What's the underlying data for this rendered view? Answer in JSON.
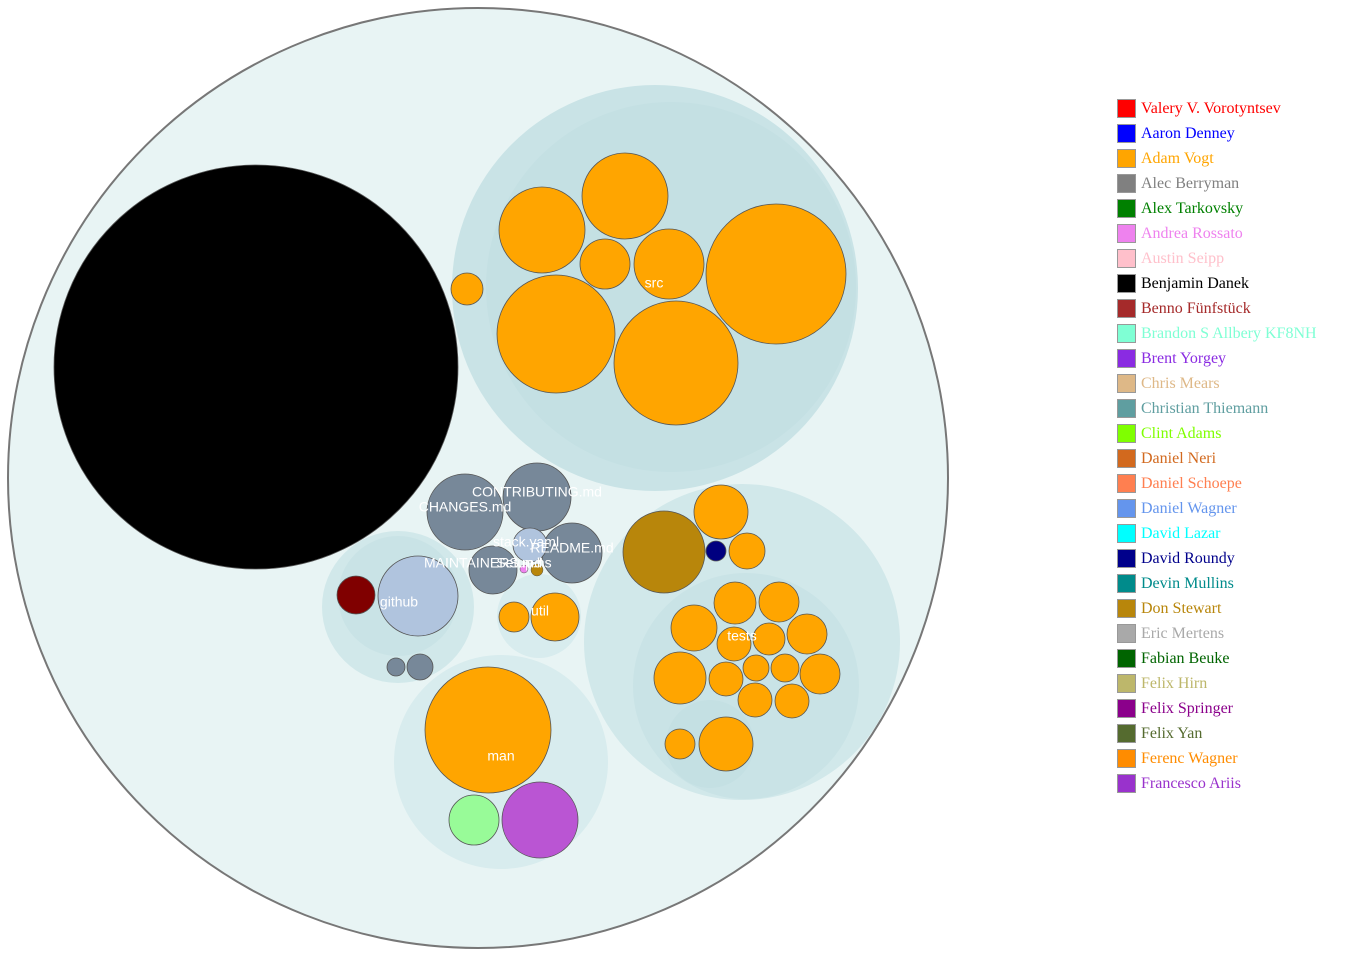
{
  "chart_data": {
    "type": "circle-packing",
    "root": {
      "name": "",
      "fill": "#e8f4f4"
    },
    "folders": [
      {
        "id": "src",
        "name": "src",
        "fill": "#c9e3e6"
      },
      {
        "id": "src-inner",
        "name": "",
        "fill": "#c4e0e3"
      },
      {
        "id": "github",
        "name": "github",
        "fill": "#d1e8ea"
      },
      {
        "id": "github-inner",
        "name": "",
        "fill": "#c9e3e6"
      },
      {
        "id": "util",
        "name": "util",
        "fill": "#d8ecee"
      },
      {
        "id": "man",
        "name": "man",
        "fill": "#d8ecee"
      },
      {
        "id": "tests",
        "name": "tests",
        "fill": "#d1e8ea"
      },
      {
        "id": "tests-inner",
        "name": "",
        "fill": "#c9e3e6"
      },
      {
        "id": "tests-sub",
        "name": "",
        "fill": "#c4e0e3"
      }
    ],
    "files": [
      {
        "name": "",
        "author": "Benjamin Danek"
      },
      {
        "name": "CHANGES.md",
        "author": "Alec Berryman"
      },
      {
        "name": "CONTRIBUTING.md",
        "author": "Alec Berryman"
      },
      {
        "name": "README.md",
        "author": "Alec Berryman"
      },
      {
        "name": "MAINTAINERS.md",
        "author": "Alec Berryman"
      },
      {
        "name": "stack.yaml",
        "author": "Daniel Wagner"
      },
      {
        "name": "Setup.hs",
        "author": "Andrea Rossato"
      },
      {
        "name": "",
        "author": "Don Stewart"
      }
    ],
    "legend": [
      {
        "name": "Valery V. Vorotyntsev",
        "color": "#ff0000"
      },
      {
        "name": "Aaron Denney",
        "color": "#0000ff"
      },
      {
        "name": "Adam Vogt",
        "color": "#ffa500"
      },
      {
        "name": "Alec Berryman",
        "color": "#808080"
      },
      {
        "name": "Alex Tarkovsky",
        "color": "#008000"
      },
      {
        "name": "Andrea Rossato",
        "color": "#ee82ee"
      },
      {
        "name": "Austin Seipp",
        "color": "#ffc0cb"
      },
      {
        "name": "Benjamin Danek",
        "color": "#000000"
      },
      {
        "name": "Benno Fünfstück",
        "color": "#a52a2a"
      },
      {
        "name": "Brandon S Allbery KF8NH",
        "color": "#7fffd4"
      },
      {
        "name": "Brent Yorgey",
        "color": "#8a2be2"
      },
      {
        "name": "Chris Mears",
        "color": "#deb887"
      },
      {
        "name": "Christian Thiemann",
        "color": "#5f9ea0"
      },
      {
        "name": "Clint Adams",
        "color": "#7fff00"
      },
      {
        "name": "Daniel Neri",
        "color": "#d2691e"
      },
      {
        "name": "Daniel Schoepe",
        "color": "#ff7f50"
      },
      {
        "name": "Daniel Wagner",
        "color": "#6495ed"
      },
      {
        "name": "David Lazar",
        "color": "#00ffff"
      },
      {
        "name": "David Roundy",
        "color": "#00008b"
      },
      {
        "name": "Devin Mullins",
        "color": "#008b8b"
      },
      {
        "name": "Don Stewart",
        "color": "#b8860b"
      },
      {
        "name": "Eric Mertens",
        "color": "#a9a9a9"
      },
      {
        "name": "Fabian Beuke",
        "color": "#006400"
      },
      {
        "name": "Felix Hirn",
        "color": "#bdb76b"
      },
      {
        "name": "Felix Springer",
        "color": "#8b008b"
      },
      {
        "name": "Felix Yan",
        "color": "#556b2f"
      },
      {
        "name": "Ferenc Wagner",
        "color": "#ff8c00"
      },
      {
        "name": "Francesco Ariis",
        "color": "#9932cc"
      }
    ],
    "bubble_colors": {
      "Adam Vogt": "#ffa500",
      "Alec Berryman": "#778899",
      "Benjamin Danek": "#000000",
      "Don Stewart": "#b8860b",
      "David Roundy": "#000080",
      "Daniel Wagner": "#b0c4de",
      "maroon": "#800000",
      "lightgreen": "#98fb98",
      "orchid": "#ba55d3",
      "violet": "#ee82ee"
    }
  }
}
